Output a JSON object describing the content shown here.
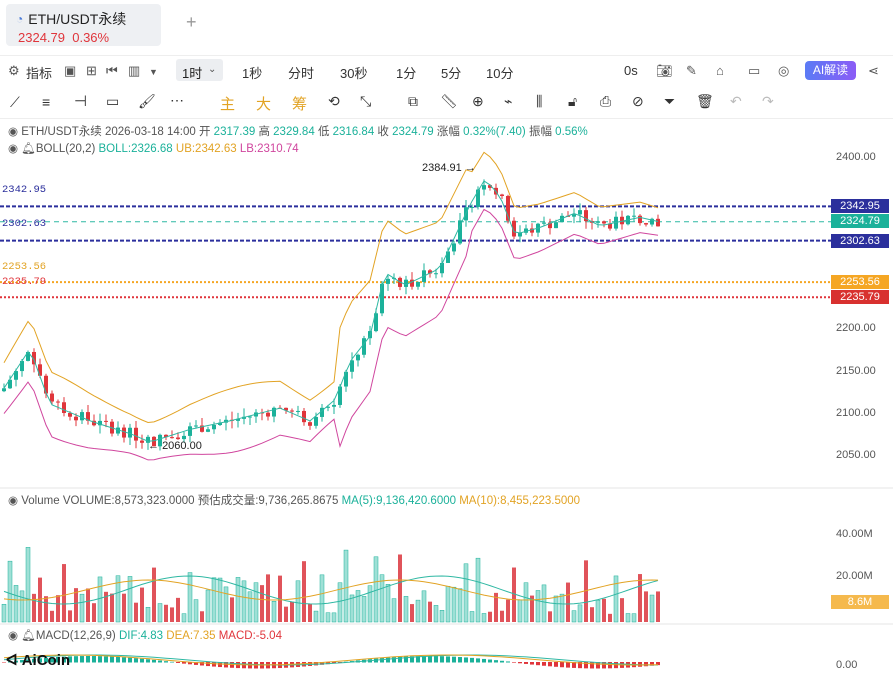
{
  "tab": {
    "title": "ETH/USDT永续",
    "price": "2324.79",
    "change": "0.36%"
  },
  "toolbar": {
    "indicator_label": "指标",
    "active_timeframe": "1时",
    "timeframes": [
      "1秒",
      "分时",
      "30秒",
      "1分",
      "5分",
      "10分"
    ],
    "countdown": "0s",
    "ai_label": "AI解读"
  },
  "drawtools": {
    "zhu": "主",
    "da": "大",
    "chou": "筹"
  },
  "ohlc": {
    "symbol": "ETH/USDT永续",
    "date": "2026-03-18 14:00",
    "open_label": "开",
    "open": "2317.39",
    "high_label": "高",
    "high": "2329.84",
    "low_label": "低",
    "low": "2316.84",
    "close_label": "收",
    "close": "2324.79",
    "chg_label": "涨幅",
    "chg": "0.32%(7.40)",
    "amp_label": "振幅",
    "amp": "0.56%"
  },
  "boll": {
    "name": "BOLL(20,2)",
    "boll": "BOLL:2326.68",
    "ub": "UB:2342.63",
    "lb": "LB:2310.74"
  },
  "price_axis": [
    "2400.00",
    "2200.00",
    "2150.00",
    "2100.00",
    "2050.00"
  ],
  "price_lines": {
    "l1": "2342.95",
    "l2": "2302.63",
    "l3": "2253.56",
    "l4": "2235.79",
    "cur": "2324.79"
  },
  "annotations": {
    "high": "2384.91",
    "low": "2060.00"
  },
  "volume": {
    "name": "Volume",
    "vol": "VOLUME:8,573,323.0000",
    "est": "预估成交量:9,736,265.8675",
    "ma5": "MA(5):9,136,420.6000",
    "ma10": "MA(10):8,455,223.5000",
    "axis": [
      "40.00M",
      "20.00M"
    ],
    "cur": "8.6M"
  },
  "macd": {
    "name": "MACD(12,26,9)",
    "dif": "DIF:4.83",
    "dea": "DEA:7.35",
    "macd": "MACD:-5.04",
    "axis": "0.00"
  },
  "logo": "AiCoin",
  "colors": {
    "up": "#1bb19a",
    "down": "#e0353b",
    "ub": "#e2a324",
    "lb": "#d0469e",
    "mid": "#2fb8a3",
    "line_blue": "#2b2f9c"
  }
}
